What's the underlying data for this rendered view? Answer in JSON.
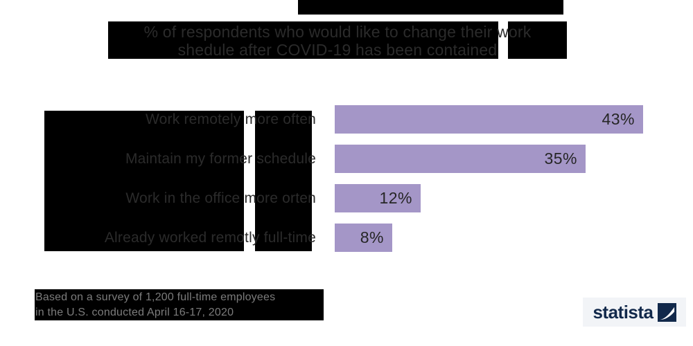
{
  "title": {
    "line1": "% of respondents who would like to change their work",
    "line2": "shedule after COVID-19 has been contained"
  },
  "chart_data": {
    "type": "bar",
    "orientation": "horizontal",
    "title": "% of respondents who would like to change their work shedule after COVID-19 has been contained",
    "categories": [
      "Work remotely more often",
      "Maintain my former schedule",
      "Work in the office more orten",
      "Already worked remotly full-time"
    ],
    "values": [
      43,
      35,
      12,
      8
    ],
    "value_labels": [
      "43%",
      "35%",
      "12%",
      "8%"
    ],
    "unit": "%",
    "bar_color": "#a496c7",
    "value_label_position": "inside-end",
    "note": "Based on a survey of 1,200 full-time employees in the U.S. conducted April 16-17, 2020"
  },
  "footer": {
    "line1": "Based on a survey of 1,200 full-time employees",
    "line2": "in the U.S. conducted April 16-17, 2020"
  },
  "branding": {
    "logo_text": "statista"
  },
  "colors": {
    "bar": "#a496c7",
    "redaction": "#000000",
    "text_dark": "#2b2b2b",
    "footer_text": "#7c7c7c",
    "logo_navy": "#12294b",
    "logo_background": "#f2f4f7"
  }
}
